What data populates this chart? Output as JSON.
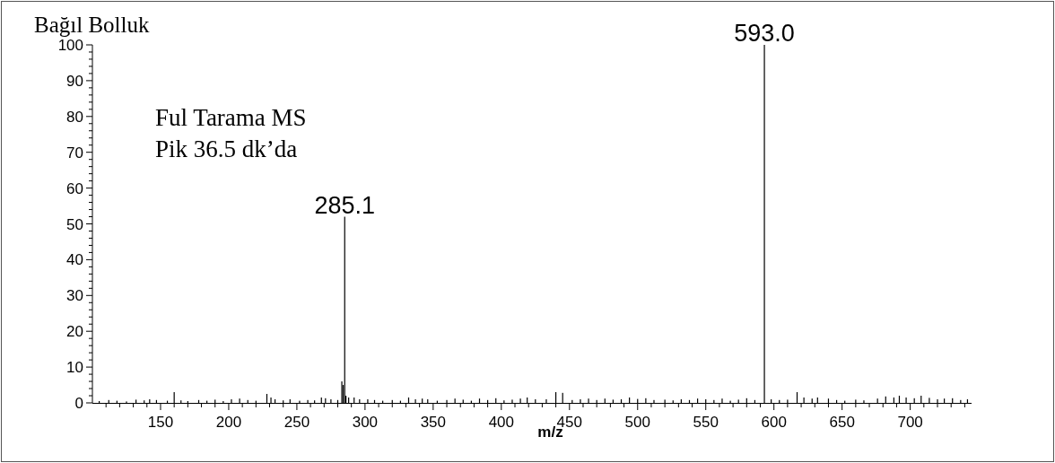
{
  "chart_data": {
    "type": "bar",
    "xlabel": "m/z",
    "ylabel": "Bağıl Bolluk",
    "annotations": [
      "Ful Tarama MS",
      "Pik 36.5 dk’da",
      {
        "text": "285.1",
        "x": 285.1,
        "y": 52
      },
      {
        "text": "593.0",
        "x": 593.0,
        "y": 100
      }
    ],
    "color": "#000000",
    "x": [
      105,
      112,
      118,
      125,
      132,
      138,
      142,
      147,
      155,
      160,
      165,
      170,
      178,
      184,
      190,
      196,
      202,
      208,
      214,
      220,
      228,
      231,
      234,
      240,
      245,
      252,
      258,
      263,
      268,
      271,
      275,
      280,
      283,
      284,
      285.1,
      286,
      288,
      292,
      296,
      302,
      307,
      313,
      320,
      326,
      332,
      337,
      342,
      346,
      353,
      360,
      366,
      372,
      378,
      384,
      390,
      396,
      402,
      408,
      414,
      419,
      425,
      433,
      440,
      445,
      452,
      458,
      464,
      470,
      476,
      482,
      488,
      494,
      500,
      506,
      512,
      520,
      526,
      532,
      538,
      544,
      550,
      556,
      562,
      568,
      574,
      580,
      586,
      593.0,
      598,
      604,
      610,
      617,
      622,
      628,
      632,
      640,
      646,
      652,
      660,
      666,
      676,
      682,
      688,
      692,
      697,
      703,
      708,
      714,
      720,
      725,
      731,
      737,
      742
    ],
    "values": [
      0.5,
      0.8,
      0.6,
      0.4,
      0.9,
      0.7,
      1.0,
      0.8,
      0.6,
      3.0,
      0.7,
      0.5,
      0.8,
      0.6,
      0.9,
      0.5,
      1.0,
      1.2,
      0.8,
      0.6,
      2.5,
      1.5,
      1.0,
      0.7,
      1.0,
      0.6,
      0.8,
      0.7,
      1.5,
      1.3,
      1.0,
      0.8,
      6.0,
      5.0,
      52,
      2.0,
      1.5,
      1.5,
      1.0,
      1.0,
      0.8,
      0.6,
      0.8,
      0.6,
      1.5,
      1.0,
      1.2,
      1.0,
      0.6,
      0.8,
      1.2,
      0.9,
      0.6,
      1.2,
      0.8,
      1.3,
      0.7,
      0.9,
      1.2,
      1.5,
      1.0,
      1.0,
      3.0,
      2.8,
      0.8,
      1.0,
      1.2,
      0.8,
      1.2,
      0.9,
      1.0,
      1.5,
      1.1,
      1.3,
      0.8,
      0.9,
      0.7,
      1.0,
      0.8,
      1.2,
      1.0,
      0.8,
      1.2,
      0.6,
      0.9,
      1.3,
      0.8,
      100,
      1.0,
      0.8,
      0.9,
      3.0,
      1.5,
      1.2,
      1.5,
      1.2,
      0.8,
      0.6,
      0.9,
      0.7,
      1.2,
      1.8,
      1.5,
      2.0,
      1.5,
      1.3,
      2.0,
      1.4,
      1.0,
      1.2,
      1.3,
      0.8,
      1.0
    ],
    "xlim": [
      100,
      745
    ],
    "xticks": [
      {
        "value": 110,
        "label": null
      },
      {
        "value": 120,
        "label": null
      },
      {
        "value": 130,
        "label": null
      },
      {
        "value": 140,
        "label": null
      },
      150,
      {
        "value": 160,
        "label": null
      },
      {
        "value": 170,
        "label": null
      },
      {
        "value": 180,
        "label": null
      },
      {
        "value": 190,
        "label": null
      },
      200,
      {
        "value": 210,
        "label": null
      },
      {
        "value": 220,
        "label": null
      },
      {
        "value": 230,
        "label": null
      },
      {
        "value": 240,
        "label": null
      },
      250,
      {
        "value": 260,
        "label": null
      },
      {
        "value": 270,
        "label": null
      },
      {
        "value": 280,
        "label": null
      },
      {
        "value": 290,
        "label": null
      },
      300,
      {
        "value": 310,
        "label": null
      },
      {
        "value": 320,
        "label": null
      },
      {
        "value": 330,
        "label": null
      },
      {
        "value": 340,
        "label": null
      },
      350,
      {
        "value": 360,
        "label": null
      },
      {
        "value": 370,
        "label": null
      },
      {
        "value": 380,
        "label": null
      },
      {
        "value": 390,
        "label": null
      },
      400,
      {
        "value": 410,
        "label": null
      },
      {
        "value": 420,
        "label": null
      },
      {
        "value": 430,
        "label": null
      },
      {
        "value": 440,
        "label": null
      },
      450,
      {
        "value": 460,
        "label": null
      },
      {
        "value": 470,
        "label": null
      },
      {
        "value": 480,
        "label": null
      },
      {
        "value": 490,
        "label": null
      },
      500,
      {
        "value": 510,
        "label": null
      },
      {
        "value": 520,
        "label": null
      },
      {
        "value": 530,
        "label": null
      },
      {
        "value": 540,
        "label": null
      },
      550,
      {
        "value": 560,
        "label": null
      },
      {
        "value": 570,
        "label": null
      },
      {
        "value": 580,
        "label": null
      },
      {
        "value": 590,
        "label": null
      },
      600,
      {
        "value": 610,
        "label": null
      },
      {
        "value": 620,
        "label": null
      },
      {
        "value": 630,
        "label": null
      },
      {
        "value": 640,
        "label": null
      },
      650,
      {
        "value": 660,
        "label": null
      },
      {
        "value": 670,
        "label": null
      },
      {
        "value": 680,
        "label": null
      },
      {
        "value": 690,
        "label": null
      },
      700,
      {
        "value": 710,
        "label": null
      },
      {
        "value": 720,
        "label": null
      },
      {
        "value": 730,
        "label": null
      },
      {
        "value": 740,
        "label": null
      }
    ],
    "ylim": [
      0,
      100
    ],
    "yticks": [
      0,
      {
        "value": 2,
        "label": null
      },
      {
        "value": 4,
        "label": null
      },
      {
        "value": 6,
        "label": null
      },
      {
        "value": 8,
        "label": null
      },
      10,
      {
        "value": 12,
        "label": null
      },
      {
        "value": 14,
        "label": null
      },
      {
        "value": 16,
        "label": null
      },
      {
        "value": 18,
        "label": null
      },
      20,
      {
        "value": 22,
        "label": null
      },
      {
        "value": 24,
        "label": null
      },
      {
        "value": 26,
        "label": null
      },
      {
        "value": 28,
        "label": null
      },
      30,
      {
        "value": 32,
        "label": null
      },
      {
        "value": 34,
        "label": null
      },
      {
        "value": 36,
        "label": null
      },
      {
        "value": 38,
        "label": null
      },
      40,
      {
        "value": 42,
        "label": null
      },
      {
        "value": 44,
        "label": null
      },
      {
        "value": 46,
        "label": null
      },
      {
        "value": 48,
        "label": null
      },
      50,
      {
        "value": 52,
        "label": null
      },
      {
        "value": 54,
        "label": null
      },
      {
        "value": 56,
        "label": null
      },
      {
        "value": 58,
        "label": null
      },
      60,
      {
        "value": 62,
        "label": null
      },
      {
        "value": 64,
        "label": null
      },
      {
        "value": 66,
        "label": null
      },
      {
        "value": 68,
        "label": null
      },
      70,
      {
        "value": 72,
        "label": null
      },
      {
        "value": 74,
        "label": null
      },
      {
        "value": 76,
        "label": null
      },
      {
        "value": 78,
        "label": null
      },
      80,
      {
        "value": 82,
        "label": null
      },
      {
        "value": 84,
        "label": null
      },
      {
        "value": 86,
        "label": null
      },
      {
        "value": 88,
        "label": null
      },
      90,
      {
        "value": 92,
        "label": null
      },
      {
        "value": 94,
        "label": null
      },
      {
        "value": 96,
        "label": null
      },
      {
        "value": 98,
        "label": null
      },
      100
    ]
  }
}
